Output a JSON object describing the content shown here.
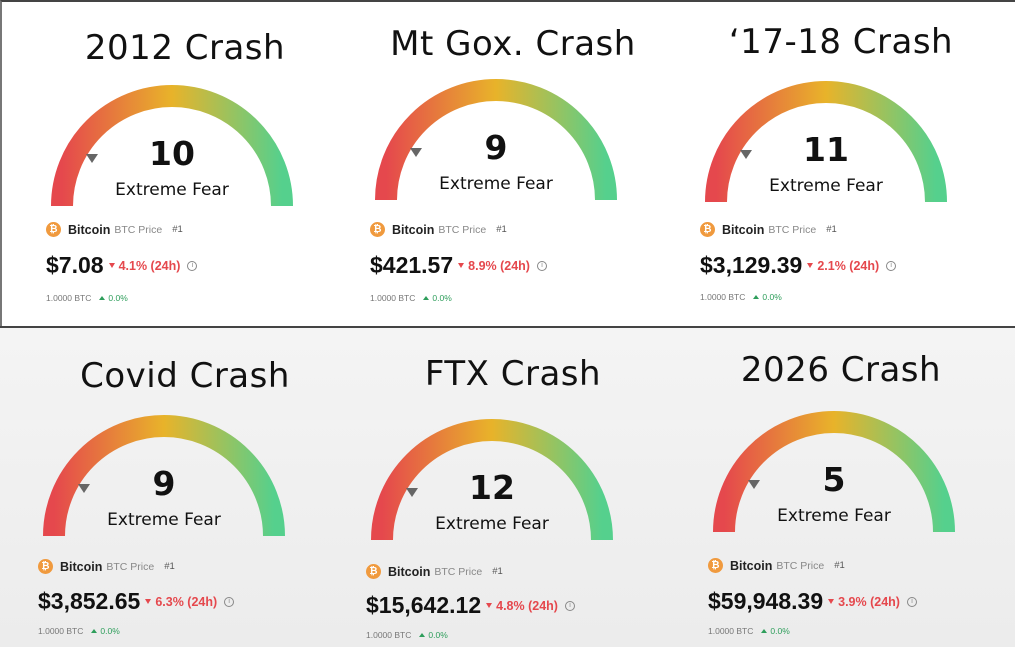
{
  "colors": {
    "fear_red": "#e5484d",
    "mid_yellow": "#e8b32a",
    "greed_green": "#55d08d",
    "coin_orange": "#f09a3e",
    "up_green": "#2e9e5b"
  },
  "icons": {
    "coin": "bitcoin-icon",
    "pointer": "gauge-pointer-icon",
    "info": "info-icon"
  },
  "panels": [
    {
      "title": "2012 Crash",
      "score": "10",
      "sentiment": "Extreme Fear",
      "coin": "Bitcoin",
      "coin_sub": "BTC Price",
      "rank": "#1",
      "price": "$7.08",
      "change": "4.1% (24h)",
      "btc_amount": "1.0000 BTC",
      "btc_change": "0.0%"
    },
    {
      "title": "Mt Gox. Crash",
      "score": "9",
      "sentiment": "Extreme Fear",
      "coin": "Bitcoin",
      "coin_sub": "BTC Price",
      "rank": "#1",
      "price": "$421.57",
      "change": "8.9% (24h)",
      "btc_amount": "1.0000 BTC",
      "btc_change": "0.0%"
    },
    {
      "title": "‘17-18 Crash",
      "score": "11",
      "sentiment": "Extreme Fear",
      "coin": "Bitcoin",
      "coin_sub": "BTC Price",
      "rank": "#1",
      "price": "$3,129.39",
      "change": "2.1% (24h)",
      "btc_amount": "1.0000 BTC",
      "btc_change": "0.0%"
    },
    {
      "title": "Covid Crash",
      "score": "9",
      "sentiment": "Extreme Fear",
      "coin": "Bitcoin",
      "coin_sub": "BTC Price",
      "rank": "#1",
      "price": "$3,852.65",
      "change": "6.3% (24h)",
      "btc_amount": "1.0000 BTC",
      "btc_change": "0.0%"
    },
    {
      "title": "FTX Crash",
      "score": "12",
      "sentiment": "Extreme Fear",
      "coin": "Bitcoin",
      "coin_sub": "BTC Price",
      "rank": "#1",
      "price": "$15,642.12",
      "change": "4.8% (24h)",
      "btc_amount": "1.0000 BTC",
      "btc_change": "0.0%"
    },
    {
      "title": "2026 Crash",
      "score": "5",
      "sentiment": "Extreme Fear",
      "coin": "Bitcoin",
      "coin_sub": "BTC Price",
      "rank": "#1",
      "price": "$59,948.39",
      "change": "3.9% (24h)",
      "btc_amount": "1.0000 BTC",
      "btc_change": "0.0%"
    }
  ]
}
